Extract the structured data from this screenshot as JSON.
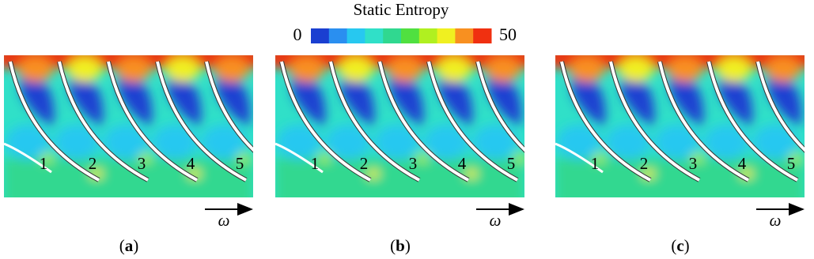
{
  "colorbar": {
    "title": "Static Entropy",
    "min": 0,
    "max": 50,
    "colors": [
      "#1a3fd1",
      "#2a8ff0",
      "#27c8f0",
      "#30e0c8",
      "#30d890",
      "#50e040",
      "#b0f020",
      "#f0f020",
      "#f89020",
      "#f03010"
    ]
  },
  "panels": [
    {
      "caption": "(a)",
      "blade_labels": [
        "1",
        "2",
        "3",
        "4",
        "5"
      ],
      "direction": "ω"
    },
    {
      "caption": "(b)",
      "blade_labels": [
        "1",
        "2",
        "3",
        "4",
        "5"
      ],
      "direction": "ω"
    },
    {
      "caption": "(c)",
      "blade_labels": [
        "1",
        "2",
        "3",
        "4",
        "5"
      ],
      "direction": "ω"
    }
  ]
}
